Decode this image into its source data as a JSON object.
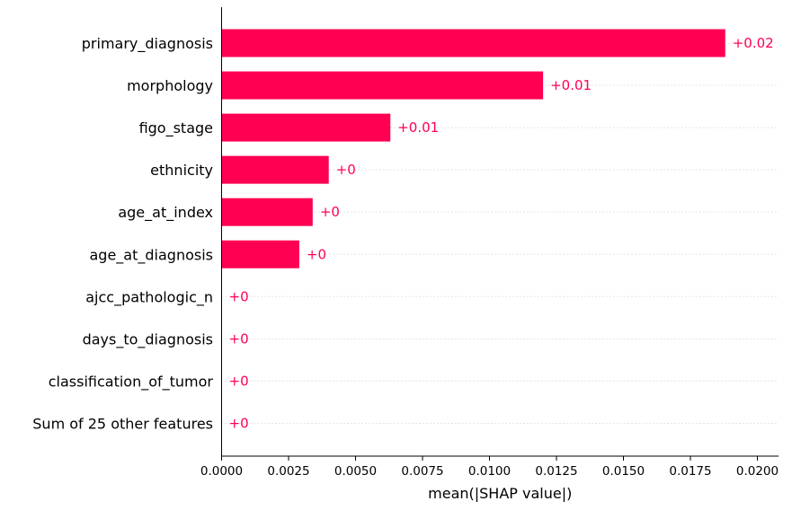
{
  "chart_data": {
    "type": "bar",
    "orientation": "horizontal",
    "categories": [
      "primary_diagnosis",
      "morphology",
      "figo_stage",
      "ethnicity",
      "age_at_index",
      "age_at_diagnosis",
      "ajcc_pathologic_n",
      "days_to_diagnosis",
      "classification_of_tumor",
      "Sum of 25 other features"
    ],
    "values": [
      0.0188,
      0.012,
      0.0063,
      0.004,
      0.0034,
      0.0029,
      0.0,
      0.0,
      0.0,
      0.0
    ],
    "value_labels": [
      "+0.02",
      "+0.01",
      "+0.01",
      "+0",
      "+0",
      "+0",
      "+0",
      "+0",
      "+0",
      "+0"
    ],
    "xlabel": "mean(|SHAP value|)",
    "xlim": [
      0.0,
      0.0205
    ],
    "ticks": [
      0.0,
      0.0025,
      0.005,
      0.0075,
      0.01,
      0.0125,
      0.015,
      0.0175,
      0.02
    ],
    "tick_labels": [
      "0.0000",
      "0.0025",
      "0.0050",
      "0.0075",
      "0.0100",
      "0.0125",
      "0.0150",
      "0.0175",
      "0.0200"
    ],
    "bar_color": "#ff0052",
    "grid": "dotted row guides"
  }
}
